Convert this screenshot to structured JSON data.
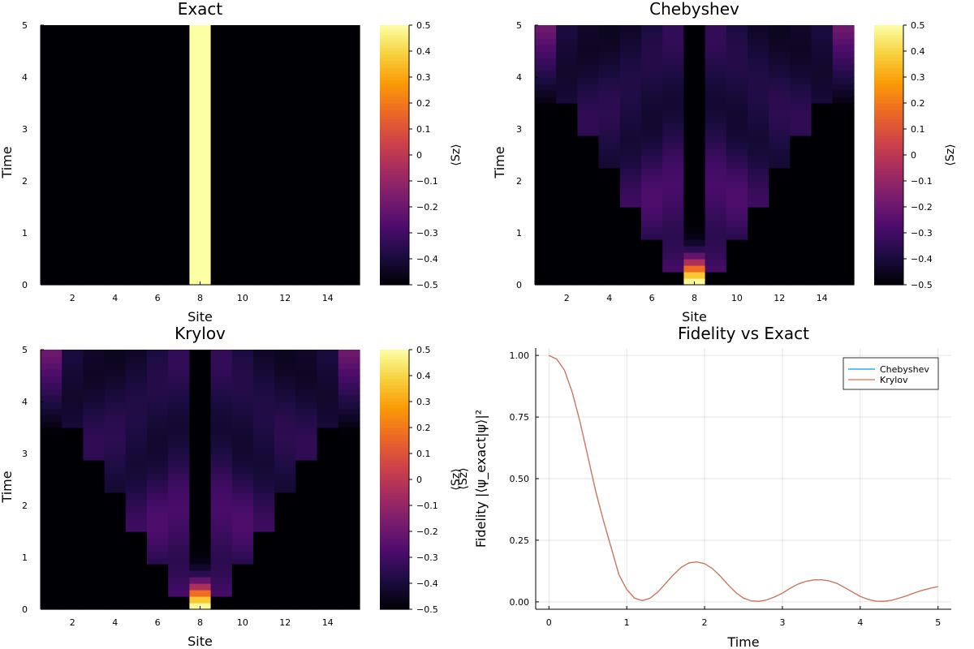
{
  "figure": {
    "chart_data": [
      {
        "id": "exact",
        "type": "heatmap",
        "title": "Exact",
        "xlabel": "Site",
        "ylabel": "Time",
        "x_range": [
          0.5,
          15.5
        ],
        "y_range": [
          0,
          5
        ],
        "x_ticks": [
          "2",
          "4",
          "6",
          "8",
          "10",
          "12",
          "14"
        ],
        "y_ticks": [
          "0",
          "1",
          "2",
          "3",
          "4",
          "5"
        ],
        "colorbar": {
          "label": "⟨Sz⟩",
          "limits": [
            -0.5,
            0.5
          ],
          "ticks": [
            "−0.5",
            "−0.4",
            "−0.3",
            "−0.2",
            "−0.1",
            "0",
            "0.1",
            "0.2",
            "0.3",
            "0.4",
            "0.5"
          ],
          "colormap": [
            "#000004",
            "#1b0c41",
            "#4a0c6b",
            "#781c6d",
            "#a52c60",
            "#cf4446",
            "#ed6925",
            "#fb9b06",
            "#f7d13d",
            "#fcffa4"
          ]
        },
        "model": "exact"
      },
      {
        "id": "chebyshev",
        "type": "heatmap",
        "title": "Chebyshev",
        "xlabel": "Site",
        "ylabel": "Time",
        "x_range": [
          0.5,
          15.5
        ],
        "y_range": [
          0,
          5
        ],
        "x_ticks": [
          "2",
          "4",
          "6",
          "8",
          "10",
          "12",
          "14"
        ],
        "y_ticks": [
          "0",
          "1",
          "2",
          "3",
          "4",
          "5"
        ],
        "colorbar": {
          "label": "⟨Sz⟩",
          "limits": [
            -0.5,
            0.5
          ],
          "ticks": [
            "−0.5",
            "−0.4",
            "−0.3",
            "−0.2",
            "−0.1",
            "0",
            "0.1",
            "0.2",
            "0.3",
            "0.4",
            "0.5"
          ],
          "colormap": [
            "#000004",
            "#1b0c41",
            "#4a0c6b",
            "#781c6d",
            "#a52c60",
            "#cf4446",
            "#ed6925",
            "#fb9b06",
            "#f7d13d",
            "#fcffa4"
          ]
        },
        "model": "spin_wave"
      },
      {
        "id": "krylov",
        "type": "heatmap",
        "title": "Krylov",
        "xlabel": "Site",
        "ylabel": "Time",
        "x_range": [
          0.5,
          15.5
        ],
        "y_range": [
          0,
          5
        ],
        "x_ticks": [
          "2",
          "4",
          "6",
          "8",
          "10",
          "12",
          "14"
        ],
        "y_ticks": [
          "0",
          "1",
          "2",
          "3",
          "4",
          "5"
        ],
        "colorbar": {
          "label": "⟨Sz⟩",
          "limits": [
            -0.5,
            0.5
          ],
          "ticks": [
            "−0.5",
            "−0.4",
            "−0.3",
            "−0.2",
            "−0.1",
            "0",
            "0.1",
            "0.2",
            "0.3",
            "0.4",
            "0.5"
          ],
          "colormap": [
            "#000004",
            "#1b0c41",
            "#4a0c6b",
            "#781c6d",
            "#a52c60",
            "#cf4446",
            "#ed6925",
            "#fb9b06",
            "#f7d13d",
            "#fcffa4"
          ]
        },
        "model": "spin_wave"
      },
      {
        "id": "fidelity",
        "type": "line",
        "title": "Fidelity vs Exact",
        "xlabel": "Time",
        "ylabel": "Fidelity |⟨ψ_exact|ψ⟩|²",
        "ylabel2": "⟨Sz⟩",
        "x_range": [
          -0.17,
          5.17
        ],
        "y_range": [
          -0.03,
          1.03
        ],
        "x_ticks": [
          0,
          1,
          2,
          3,
          4,
          5
        ],
        "y_ticks": [
          0.0,
          0.25,
          0.5,
          0.75,
          1.0
        ],
        "x_tick_labels": [
          "0",
          "1",
          "2",
          "3",
          "4",
          "5"
        ],
        "y_tick_labels": [
          "0.00",
          "0.25",
          "0.50",
          "0.75",
          "1.00"
        ],
        "grid": true,
        "legend": "top-right",
        "series": [
          {
            "name": "Chebyshev",
            "color": "#009af9",
            "x": [
              0,
              0.1,
              0.2,
              0.3,
              0.4,
              0.5,
              0.6,
              0.7,
              0.8,
              0.9,
              1.0,
              1.1,
              1.2,
              1.3,
              1.4,
              1.5,
              1.6,
              1.7,
              1.8,
              1.9,
              2.0,
              2.1,
              2.2,
              2.3,
              2.4,
              2.5,
              2.6,
              2.7,
              2.8,
              2.9,
              3.0,
              3.1,
              3.2,
              3.3,
              3.4,
              3.5,
              3.6,
              3.7,
              3.8,
              3.9,
              4.0,
              4.1,
              4.2,
              4.3,
              4.4,
              4.5,
              4.6,
              4.7,
              4.8,
              4.9,
              5.0
            ],
            "y": [
              1.0,
              0.985,
              0.94,
              0.85,
              0.73,
              0.59,
              0.45,
              0.33,
              0.22,
              0.11,
              0.05,
              0.015,
              0.005,
              0.015,
              0.04,
              0.075,
              0.11,
              0.14,
              0.158,
              0.162,
              0.155,
              0.135,
              0.105,
              0.07,
              0.038,
              0.015,
              0.004,
              0.002,
              0.008,
              0.02,
              0.035,
              0.055,
              0.072,
              0.083,
              0.089,
              0.09,
              0.085,
              0.075,
              0.058,
              0.04,
              0.022,
              0.01,
              0.003,
              0.002,
              0.006,
              0.015,
              0.025,
              0.037,
              0.047,
              0.055,
              0.062
            ]
          },
          {
            "name": "Krylov",
            "color": "#e26f46",
            "x": [
              0,
              0.1,
              0.2,
              0.3,
              0.4,
              0.5,
              0.6,
              0.7,
              0.8,
              0.9,
              1.0,
              1.1,
              1.2,
              1.3,
              1.4,
              1.5,
              1.6,
              1.7,
              1.8,
              1.9,
              2.0,
              2.1,
              2.2,
              2.3,
              2.4,
              2.5,
              2.6,
              2.7,
              2.8,
              2.9,
              3.0,
              3.1,
              3.2,
              3.3,
              3.4,
              3.5,
              3.6,
              3.7,
              3.8,
              3.9,
              4.0,
              4.1,
              4.2,
              4.3,
              4.4,
              4.5,
              4.6,
              4.7,
              4.8,
              4.9,
              5.0
            ],
            "y": [
              1.0,
              0.985,
              0.94,
              0.85,
              0.73,
              0.59,
              0.45,
              0.33,
              0.22,
              0.11,
              0.05,
              0.015,
              0.005,
              0.015,
              0.04,
              0.075,
              0.11,
              0.14,
              0.158,
              0.162,
              0.155,
              0.135,
              0.105,
              0.07,
              0.038,
              0.015,
              0.004,
              0.002,
              0.008,
              0.02,
              0.035,
              0.055,
              0.072,
              0.083,
              0.089,
              0.09,
              0.085,
              0.075,
              0.058,
              0.04,
              0.022,
              0.01,
              0.003,
              0.002,
              0.006,
              0.015,
              0.025,
              0.037,
              0.047,
              0.055,
              0.062
            ]
          }
        ]
      }
    ]
  }
}
